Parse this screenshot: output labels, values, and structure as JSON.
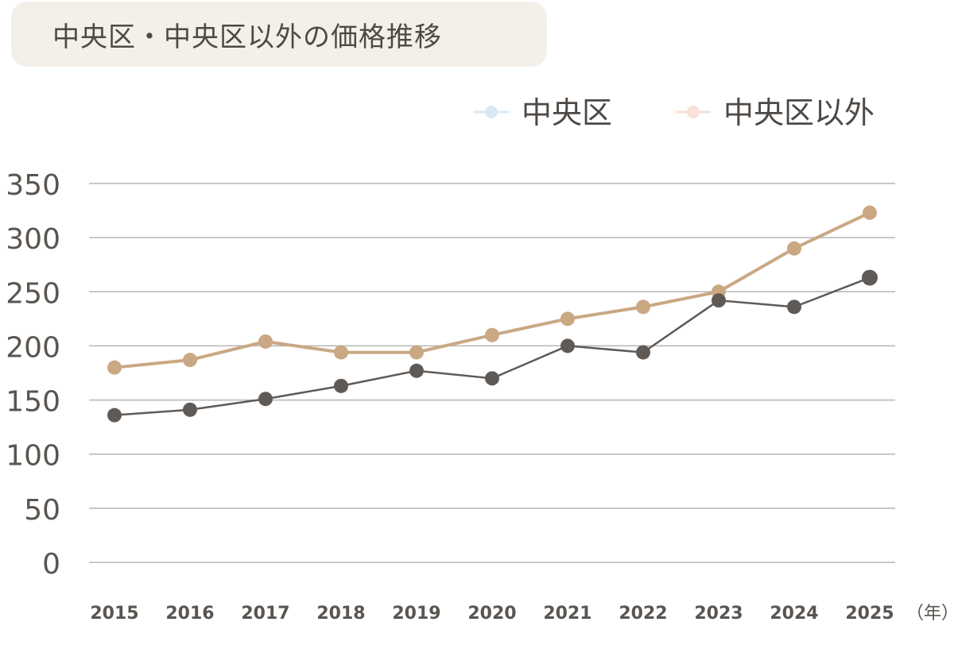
{
  "header": {
    "title": "中央区・中央区以外の価格推移"
  },
  "colors": {
    "series_central_line": "#5f5a56",
    "series_other_line": "#c9a883",
    "legend_central_marker": "#dbe8f2",
    "legend_other_marker": "#f8e1d6",
    "grid": "#b5b5b5",
    "tick_text": "#5a5550",
    "title_bg": "#f4efe9"
  },
  "chart_data": {
    "type": "line",
    "title": "中央区・中央区以外の価格推移",
    "x_unit_label": "（年）",
    "categories": [
      "2015",
      "2016",
      "2017",
      "2018",
      "2019",
      "2020",
      "2021",
      "2022",
      "2023",
      "2024",
      "2025"
    ],
    "ylim": [
      0,
      350
    ],
    "yticks": [
      0,
      50,
      100,
      150,
      200,
      250,
      300,
      350
    ],
    "grid": true,
    "legend_position": "top-right",
    "series": [
      {
        "name": "中央区",
        "values": [
          136,
          141,
          151,
          163,
          177,
          170,
          200,
          194,
          242,
          236,
          263
        ]
      },
      {
        "name": "中央区以外",
        "values": [
          180,
          187,
          204,
          194,
          194,
          210,
          225,
          236,
          250,
          290,
          323
        ]
      }
    ]
  }
}
